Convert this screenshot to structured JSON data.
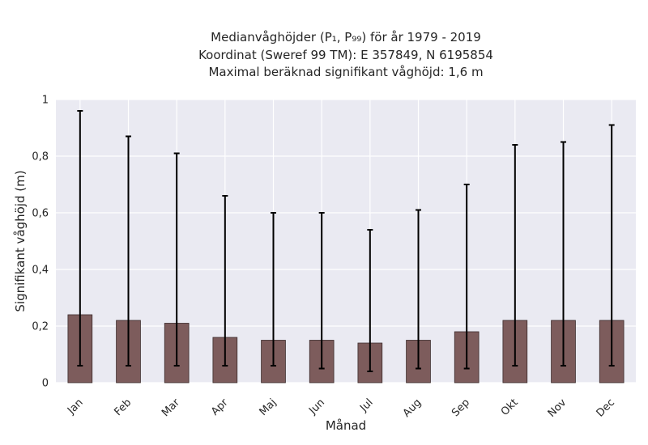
{
  "chart_data": {
    "type": "bar",
    "title_lines": [
      "Medianvåghöjder (P₁, P₉₉) för år 1979 - 2019",
      "Koordinat (Sweref 99 TM): E 357849, N 6195854",
      "Maximal beräknad signifikant våghöjd: 1,6 m"
    ],
    "xlabel": "Månad",
    "ylabel": "Signifikant våghöjd (m)",
    "categories": [
      "Jan",
      "Feb",
      "Mar",
      "Apr",
      "Maj",
      "Jun",
      "Jul",
      "Aug",
      "Sep",
      "Okt",
      "Nov",
      "Dec"
    ],
    "values": [
      0.24,
      0.22,
      0.21,
      0.16,
      0.15,
      0.15,
      0.14,
      0.15,
      0.18,
      0.22,
      0.22,
      0.22
    ],
    "p1": [
      0.06,
      0.06,
      0.06,
      0.06,
      0.06,
      0.05,
      0.04,
      0.05,
      0.05,
      0.06,
      0.06,
      0.06
    ],
    "p99": [
      0.96,
      0.87,
      0.81,
      0.66,
      0.6,
      0.6,
      0.54,
      0.61,
      0.7,
      0.84,
      0.85,
      0.91
    ],
    "ylim": [
      0,
      1
    ],
    "yticks": [
      0,
      0.2,
      0.4,
      0.6,
      0.8,
      1
    ],
    "ytick_labels": [
      "0",
      "0,2",
      "0,4",
      "0,6",
      "0,8",
      "1"
    ],
    "grid": true,
    "colors": {
      "bar": "#7d5c5c",
      "bar_edge": "#3a2a2a",
      "errorbar": "#000000",
      "plot_bg": "#eaeaf2",
      "grid": "#ffffff"
    }
  }
}
